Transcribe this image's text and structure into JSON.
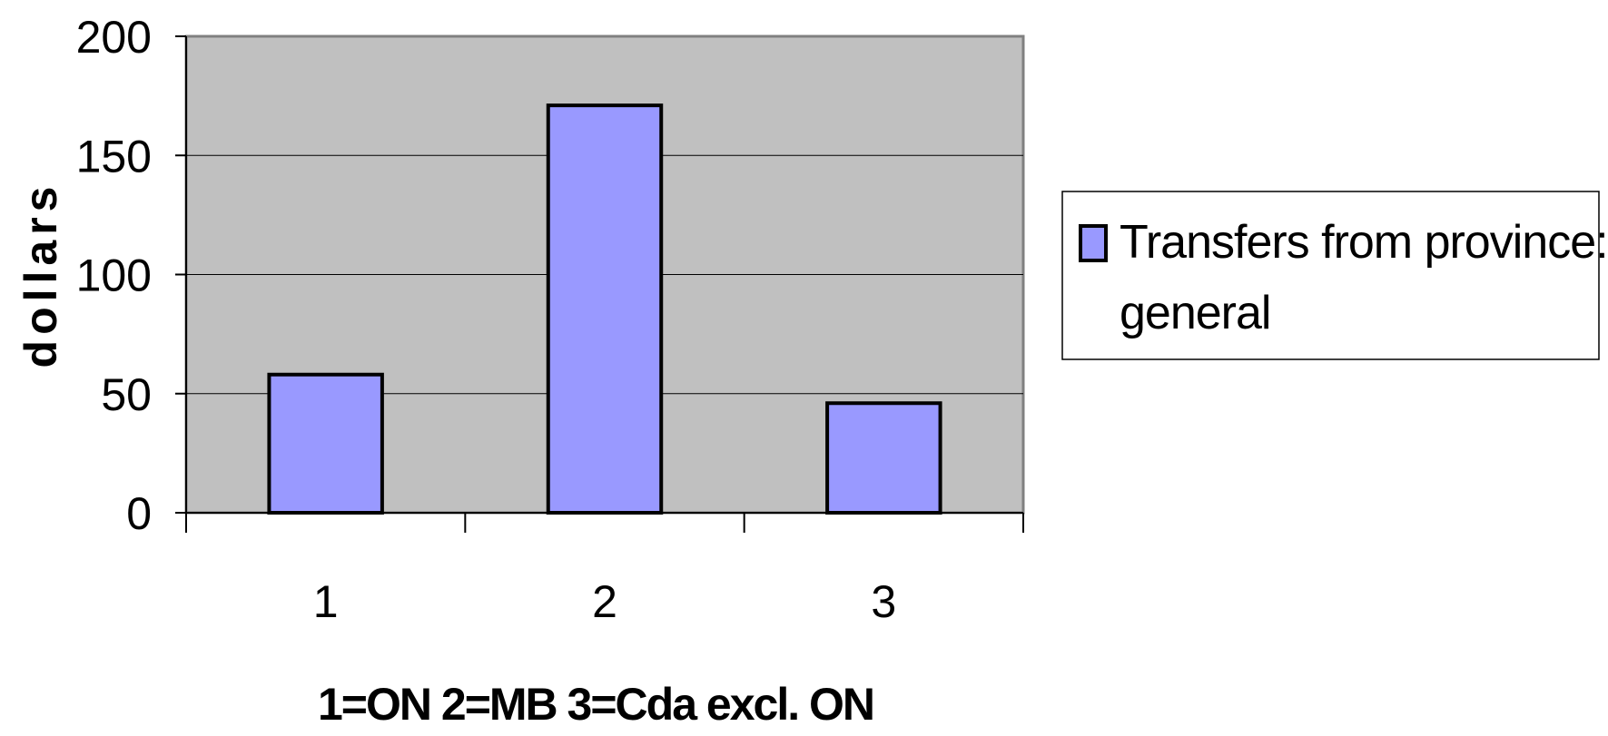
{
  "chart_data": {
    "type": "bar",
    "categories": [
      "1",
      "2",
      "3"
    ],
    "series": [
      {
        "name": "Transfers from province: general",
        "name_lines": [
          "Transfers from province:",
          "general"
        ],
        "values": [
          58,
          171,
          46
        ],
        "color": "#9999ff"
      }
    ],
    "title": "",
    "xlabel": "1=ON 2=MB 3=Cda excl. ON",
    "ylabel": "dollars",
    "ylim": [
      0,
      200
    ],
    "yticks": [
      "0",
      "50",
      "100",
      "150",
      "200"
    ],
    "grid": true,
    "legend_position": "right",
    "plot_background": "#c0c0c0",
    "gridline_color": "#000000",
    "bar_outline_color": "#000000"
  }
}
